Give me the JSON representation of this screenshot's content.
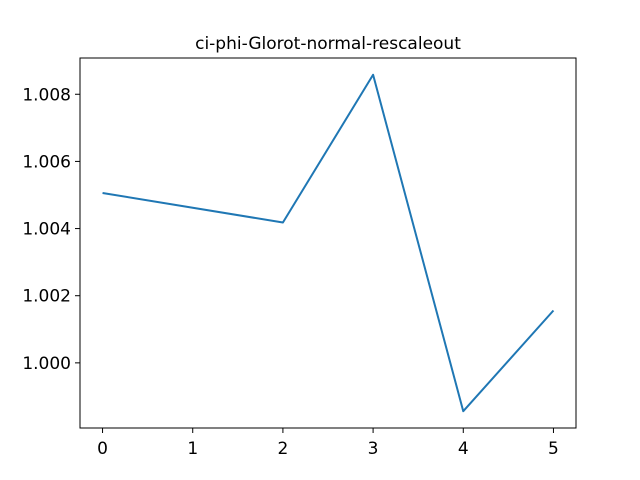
{
  "chart_data": {
    "type": "line",
    "title": "ci-phi-Glorot-normal-rescaleout",
    "xlabel": "",
    "ylabel": "",
    "x": [
      0,
      2,
      3,
      4,
      5
    ],
    "series": [
      {
        "name": "",
        "values": [
          1.00506,
          1.00418,
          1.00858,
          0.99856,
          1.00156
        ],
        "color": "#1f77b4"
      }
    ],
    "xticks": [
      0,
      1,
      2,
      3,
      4,
      5
    ],
    "xtick_labels": [
      "0",
      "1",
      "2",
      "3",
      "4",
      "5"
    ],
    "yticks": [
      1.0,
      1.002,
      1.004,
      1.006,
      1.008
    ],
    "ytick_labels": [
      "1.000",
      "1.002",
      "1.004",
      "1.006",
      "1.008"
    ],
    "xlim": [
      -0.25,
      5.25
    ],
    "ylim": [
      0.99806,
      1.00908
    ],
    "grid": false,
    "legend": "none"
  }
}
